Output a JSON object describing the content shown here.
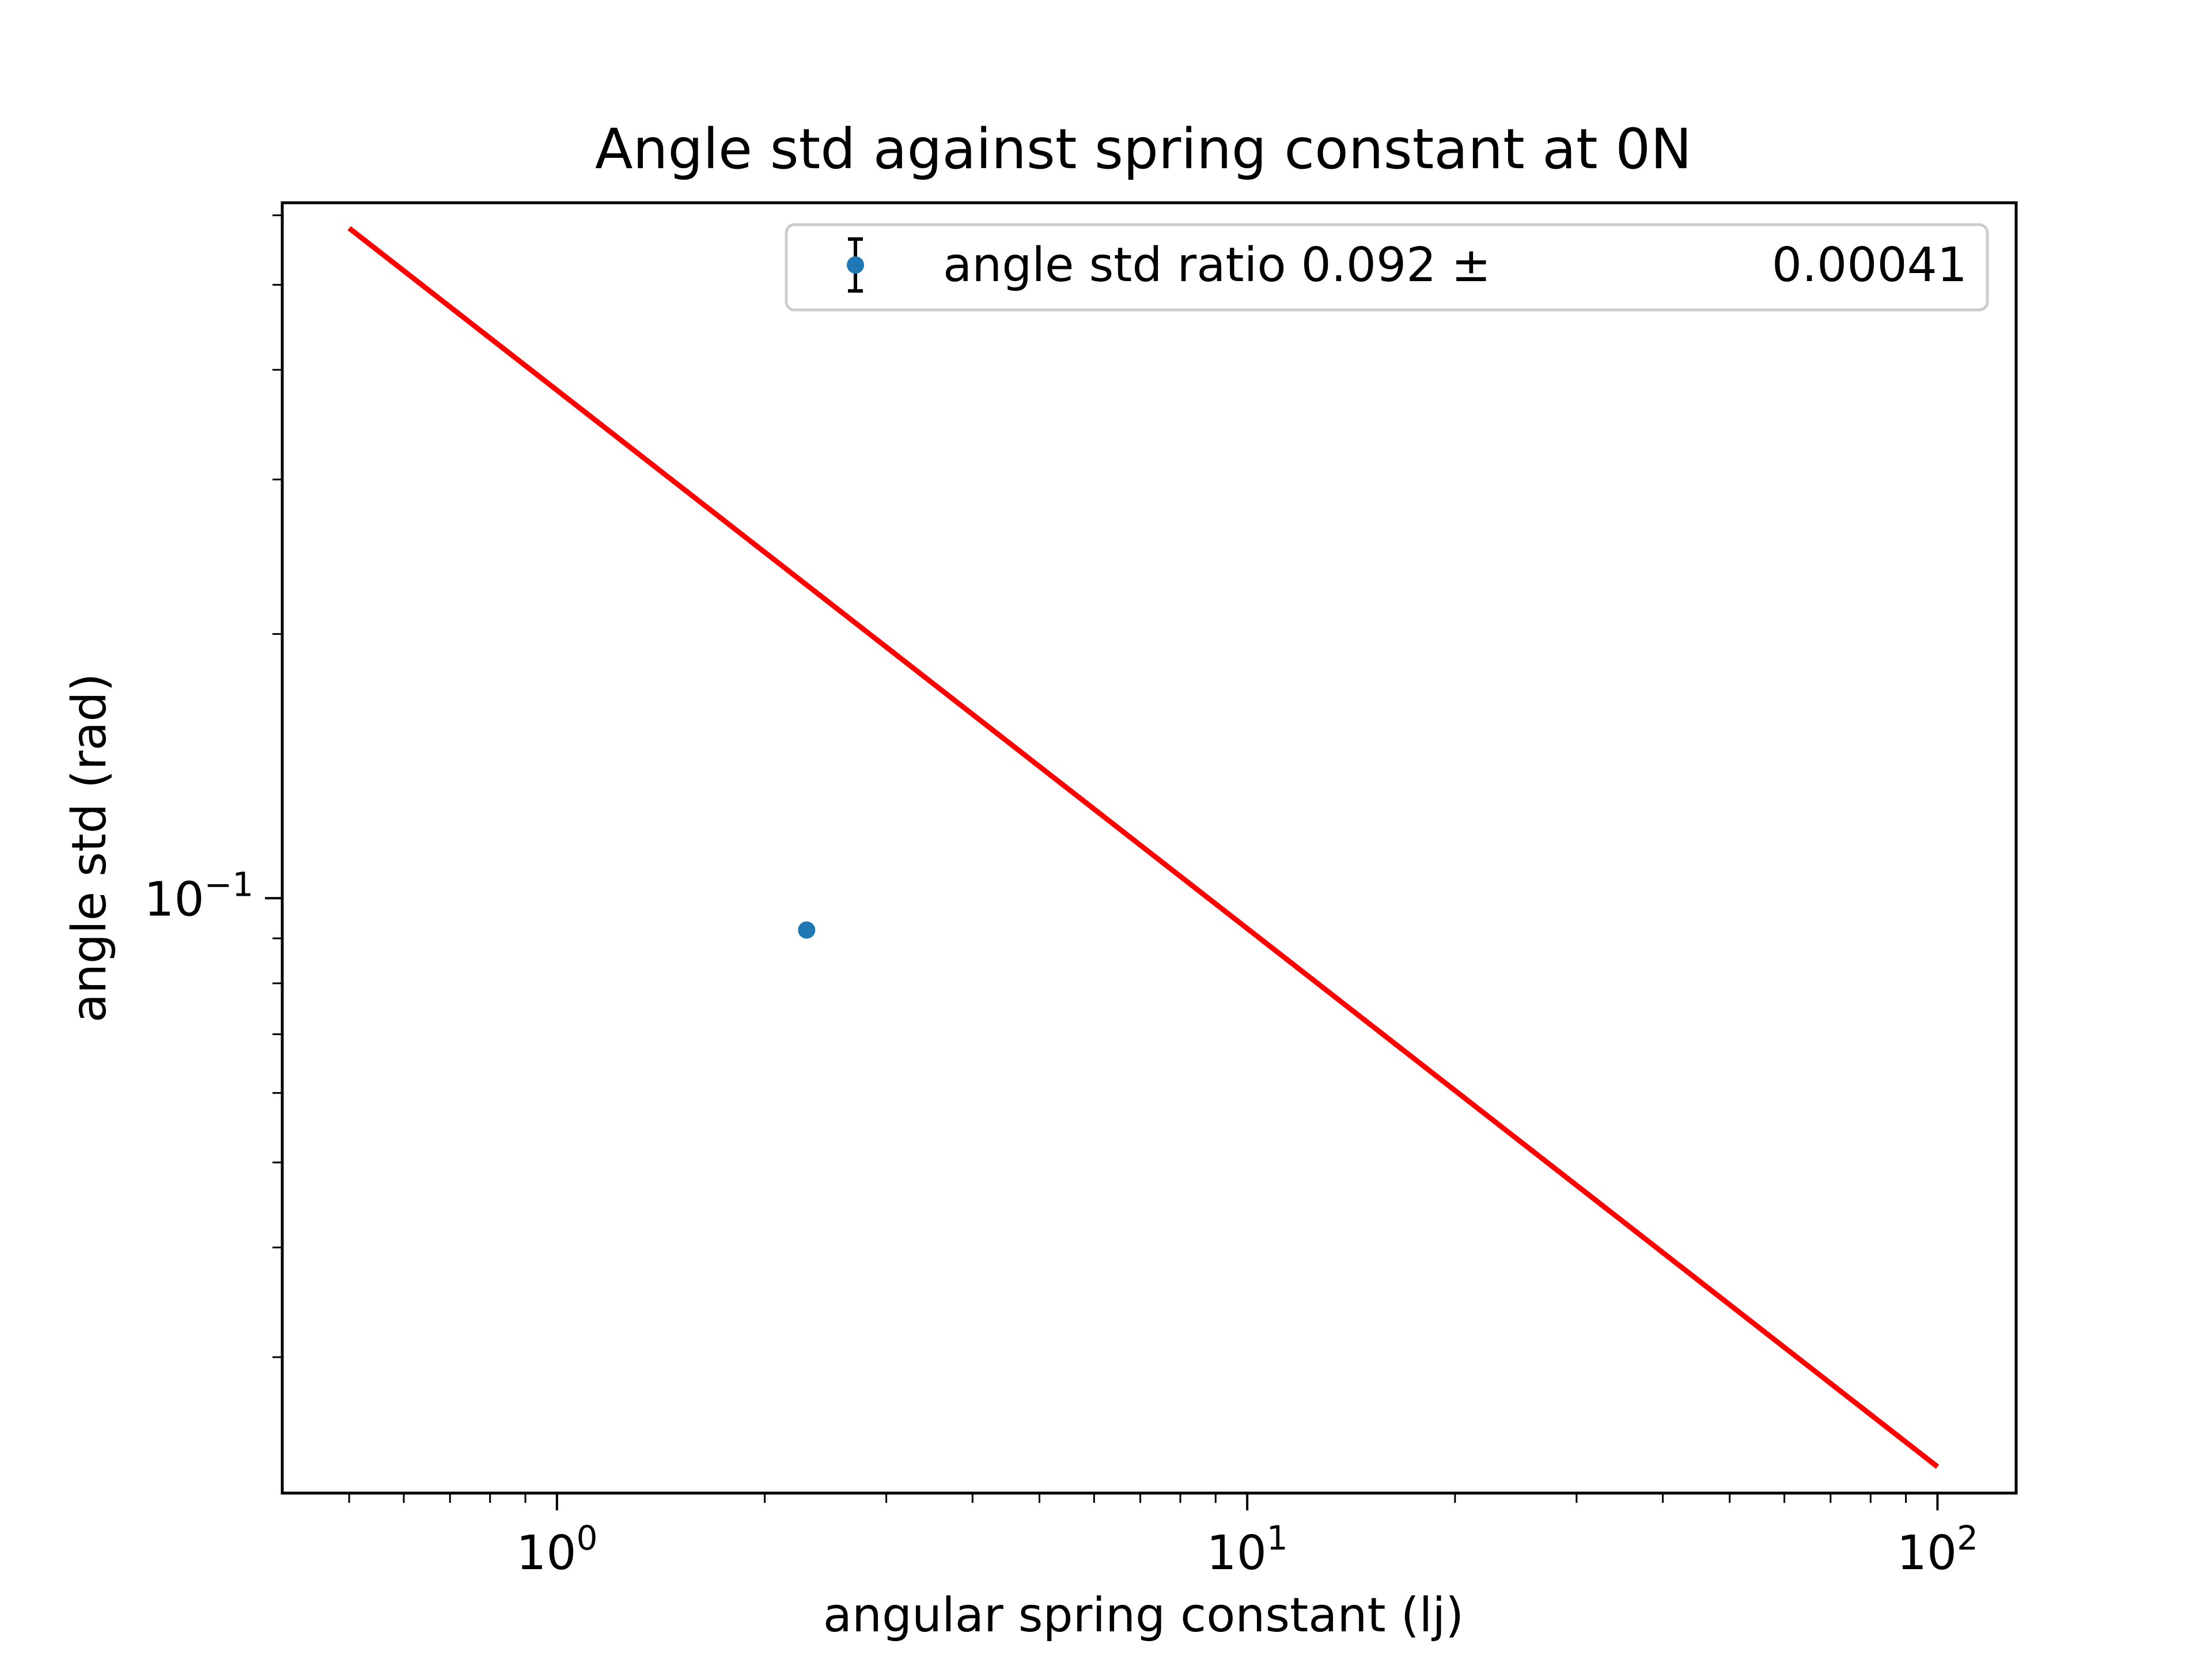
{
  "chart_data": {
    "type": "scatter",
    "title": "Angle std against spring constant at 0N",
    "xlabel": "angular spring constant (lj)",
    "ylabel": "angle std (rad)",
    "x_scale": "log",
    "y_scale": "log",
    "xlim": [
      0.4,
      130
    ],
    "ylim": [
      0.021,
      0.62
    ],
    "x_ticks": [
      {
        "value": 1,
        "base": "10",
        "exp": "0"
      },
      {
        "value": 10,
        "base": "10",
        "exp": "1"
      },
      {
        "value": 100,
        "base": "10",
        "exp": "2"
      }
    ],
    "y_ticks": [
      {
        "value": 0.1,
        "base": "10",
        "exp": "−1"
      }
    ],
    "grid": false,
    "legend": {
      "placement": "top-right",
      "entries": [
        {
          "label": "angle std ratio 0.092 ±",
          "value": "0.00041"
        }
      ]
    },
    "series": [
      {
        "kind": "points",
        "color": "#1f77b4",
        "points": [
          {
            "x": 2.3,
            "y": 0.092,
            "yerr": 0.00041
          }
        ]
      },
      {
        "kind": "line",
        "color": "#ff0000",
        "points": [
          {
            "x": 0.5,
            "y": 0.58
          },
          {
            "x": 100,
            "y": 0.0225
          }
        ]
      }
    ]
  }
}
